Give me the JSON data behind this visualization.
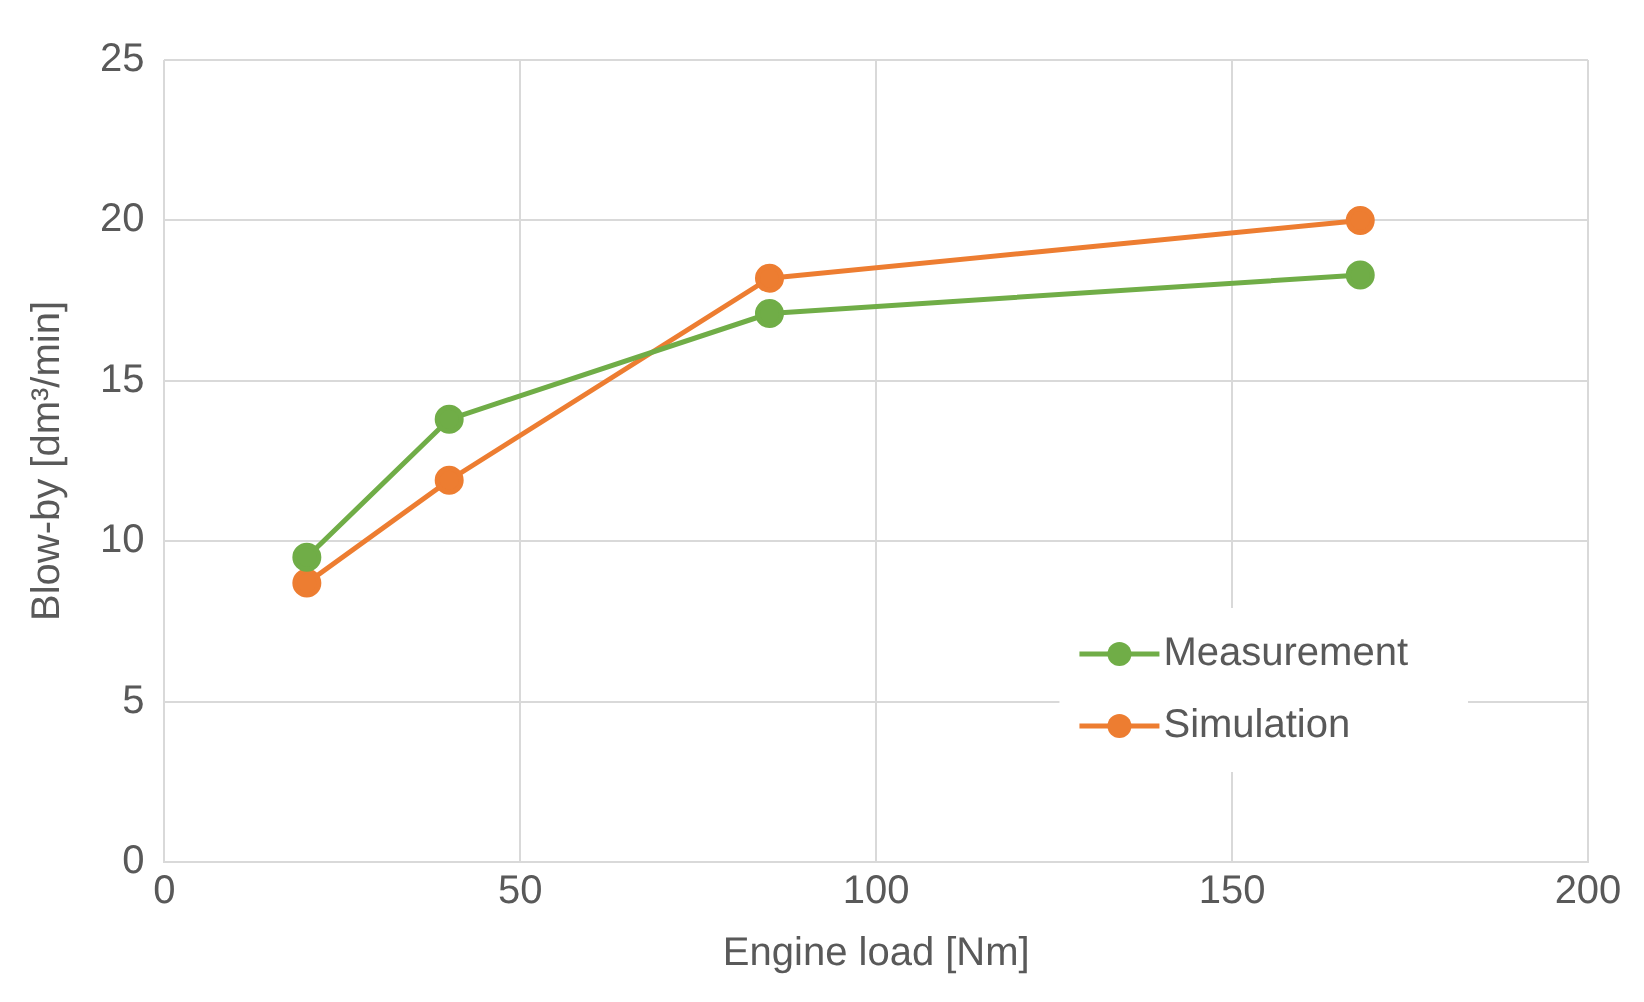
{
  "chart_data": {
    "type": "line",
    "xlabel": "Engine load [Nm]",
    "ylabel": "Blow-by [dm³/min]",
    "x": [
      20,
      40,
      85,
      168
    ],
    "series": [
      {
        "name": "Measurement",
        "color": "#70ad47",
        "values": [
          9.5,
          13.8,
          17.1,
          18.3
        ]
      },
      {
        "name": "Simulation",
        "color": "#ed7d31",
        "values": [
          8.7,
          11.9,
          18.2,
          20.0
        ]
      }
    ],
    "xlim": [
      0,
      200
    ],
    "xticks": [
      0,
      50,
      100,
      150,
      200
    ],
    "ylim": [
      0,
      25
    ],
    "yticks": [
      0,
      5,
      10,
      15,
      20,
      25
    ],
    "grid": true,
    "legend": "bottom right",
    "marker": "circle",
    "line_style": "solid"
  }
}
